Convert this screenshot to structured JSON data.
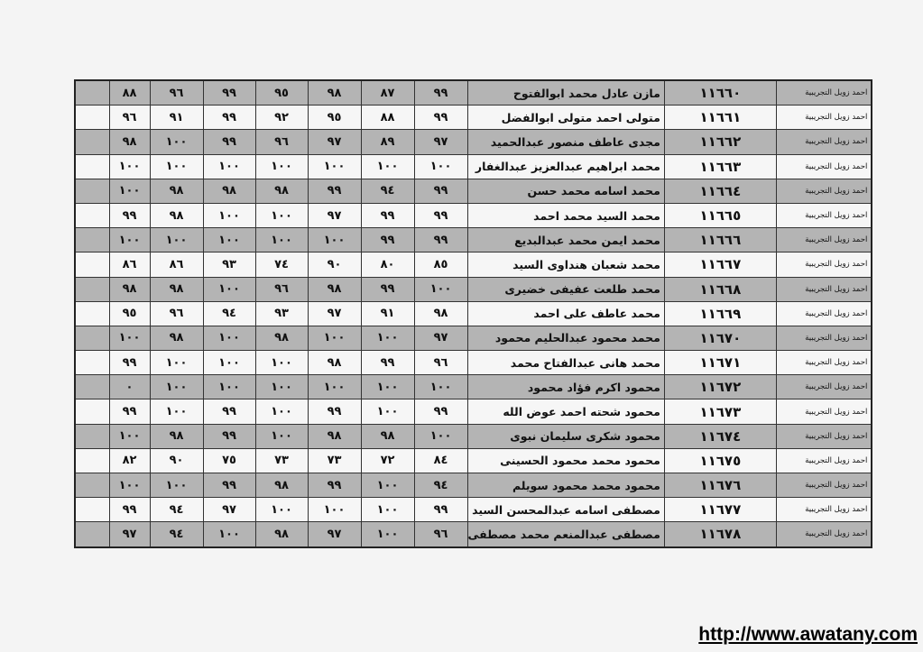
{
  "table": {
    "rows": [
      {
        "school": "احمد زويل التجريبية",
        "id": "١١٦٦٠",
        "name": "مازن عادل محمد ابوالفتوح",
        "scores": [
          "٨٨",
          "٩٦",
          "٩٩",
          "٩٥",
          "٩٨",
          "٨٧",
          "٩٩"
        ]
      },
      {
        "school": "احمد زويل التجريبية",
        "id": "١١٦٦١",
        "name": "متولى احمد متولى ابوالفضل",
        "scores": [
          "٩٦",
          "٩١",
          "٩٩",
          "٩٢",
          "٩٥",
          "٨٨",
          "٩٩"
        ]
      },
      {
        "school": "احمد زويل التجريبية",
        "id": "١١٦٦٢",
        "name": "مجدى عاطف منصور عبدالحميد",
        "scores": [
          "٩٨",
          "١٠٠",
          "٩٩",
          "٩٦",
          "٩٧",
          "٨٩",
          "٩٧"
        ]
      },
      {
        "school": "احمد زويل التجريبية",
        "id": "١١٦٦٣",
        "name": "محمد ابراهيم عبدالعزيز عبدالغفار",
        "scores": [
          "١٠٠",
          "١٠٠",
          "١٠٠",
          "١٠٠",
          "١٠٠",
          "١٠٠",
          "١٠٠"
        ]
      },
      {
        "school": "احمد زويل التجريبية",
        "id": "١١٦٦٤",
        "name": "محمد اسامه محمد حسن",
        "scores": [
          "١٠٠",
          "٩٨",
          "٩٨",
          "٩٨",
          "٩٩",
          "٩٤",
          "٩٩"
        ]
      },
      {
        "school": "احمد زويل التجريبية",
        "id": "١١٦٦٥",
        "name": "محمد السيد محمد احمد",
        "scores": [
          "٩٩",
          "٩٨",
          "١٠٠",
          "١٠٠",
          "٩٧",
          "٩٩",
          "٩٩"
        ]
      },
      {
        "school": "احمد زويل التجريبية",
        "id": "١١٦٦٦",
        "name": "محمد ايمن محمد عبدالبديع",
        "scores": [
          "١٠٠",
          "١٠٠",
          "١٠٠",
          "١٠٠",
          "١٠٠",
          "٩٩",
          "٩٩"
        ]
      },
      {
        "school": "احمد زويل التجريبية",
        "id": "١١٦٦٧",
        "name": "محمد شعبان هنداوى السيد",
        "scores": [
          "٨٦",
          "٨٦",
          "٩٣",
          "٧٤",
          "٩٠",
          "٨٠",
          "٨٥"
        ]
      },
      {
        "school": "احمد زويل التجريبية",
        "id": "١١٦٦٨",
        "name": "محمد طلعت عفيفى خضيرى",
        "scores": [
          "٩٨",
          "٩٨",
          "١٠٠",
          "٩٦",
          "٩٨",
          "٩٩",
          "١٠٠"
        ]
      },
      {
        "school": "احمد زويل التجريبية",
        "id": "١١٦٦٩",
        "name": "محمد عاطف على احمد",
        "scores": [
          "٩٥",
          "٩٦",
          "٩٤",
          "٩٣",
          "٩٧",
          "٩١",
          "٩٨"
        ]
      },
      {
        "school": "احمد زويل التجريبية",
        "id": "١١٦٧٠",
        "name": "محمد محمود عبدالحليم محمود",
        "scores": [
          "١٠٠",
          "٩٨",
          "١٠٠",
          "٩٨",
          "١٠٠",
          "١٠٠",
          "٩٧"
        ]
      },
      {
        "school": "احمد زويل التجريبية",
        "id": "١١٦٧١",
        "name": "محمد هانى عبدالفتاح محمد",
        "scores": [
          "٩٩",
          "١٠٠",
          "١٠٠",
          "١٠٠",
          "٩٨",
          "٩٩",
          "٩٦"
        ]
      },
      {
        "school": "احمد زويل التجريبية",
        "id": "١١٦٧٢",
        "name": "محمود اكرم فؤاد محمود",
        "scores": [
          "٠",
          "١٠٠",
          "١٠٠",
          "١٠٠",
          "١٠٠",
          "١٠٠",
          "١٠٠"
        ]
      },
      {
        "school": "احمد زويل التجريبية",
        "id": "١١٦٧٣",
        "name": "محمود شحته احمد عوض الله",
        "scores": [
          "٩٩",
          "١٠٠",
          "٩٩",
          "١٠٠",
          "٩٩",
          "١٠٠",
          "٩٩"
        ]
      },
      {
        "school": "احمد زويل التجريبية",
        "id": "١١٦٧٤",
        "name": "محمود شكرى سليمان نبوى",
        "scores": [
          "١٠٠",
          "٩٨",
          "٩٩",
          "١٠٠",
          "٩٨",
          "٩٨",
          "١٠٠"
        ]
      },
      {
        "school": "احمد زويل التجريبية",
        "id": "١١٦٧٥",
        "name": "محمود محمد محمود الحسينى",
        "scores": [
          "٨٢",
          "٩٠",
          "٧٥",
          "٧٣",
          "٧٣",
          "٧٢",
          "٨٤"
        ]
      },
      {
        "school": "احمد زويل التجريبية",
        "id": "١١٦٧٦",
        "name": "محمود محمد محمود سويلم",
        "scores": [
          "١٠٠",
          "١٠٠",
          "٩٩",
          "٩٨",
          "٩٩",
          "١٠٠",
          "٩٤"
        ]
      },
      {
        "school": "احمد زويل التجريبية",
        "id": "١١٦٧٧",
        "name": "مصطفى اسامه عبدالمحسن السيد",
        "scores": [
          "٩٩",
          "٩٤",
          "٩٧",
          "١٠٠",
          "١٠٠",
          "١٠٠",
          "٩٩"
        ]
      },
      {
        "school": "احمد زويل التجريبية",
        "id": "١١٦٧٨",
        "name": "مصطفى عبدالمنعم محمد مصطفى",
        "scores": [
          "٩٧",
          "٩٤",
          "١٠٠",
          "٩٨",
          "٩٧",
          "١٠٠",
          "٩٦"
        ]
      }
    ],
    "row_colors": {
      "shaded": "#b4b4b4",
      "plain": "#f6f6f6"
    }
  },
  "footer": {
    "link": "http://www.awatany.com"
  }
}
